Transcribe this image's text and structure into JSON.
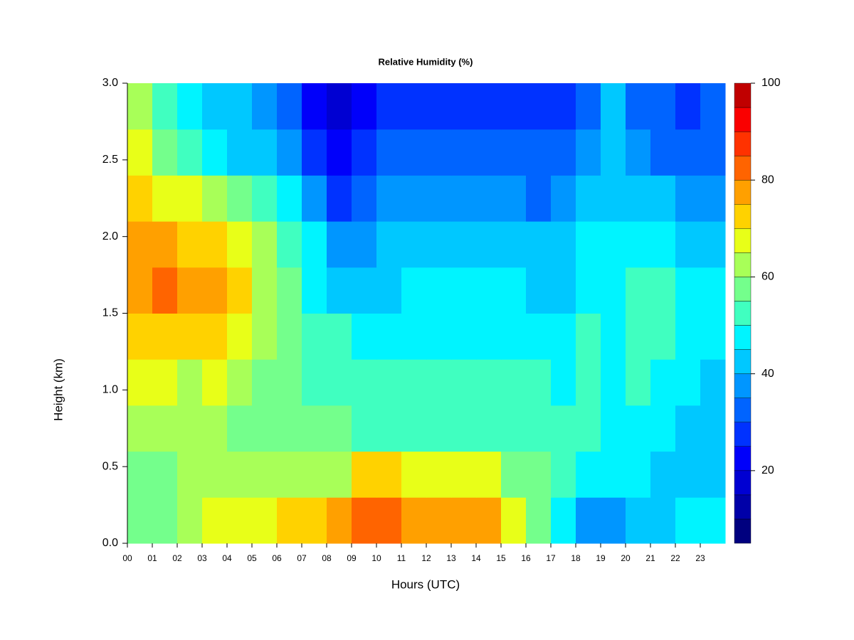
{
  "chart_data": {
    "type": "heatmap",
    "title": "Relative Humidity (%)",
    "x_label": "Hours (UTC)",
    "y_label": "Height (km)",
    "xlim": [
      0,
      24
    ],
    "ylim": [
      0,
      3
    ],
    "xticks": [
      {
        "value": 0,
        "label": "00"
      },
      {
        "value": 1,
        "label": "01"
      },
      {
        "value": 2,
        "label": "02"
      },
      {
        "value": 3,
        "label": "03"
      },
      {
        "value": 4,
        "label": "04"
      },
      {
        "value": 5,
        "label": "05"
      },
      {
        "value": 6,
        "label": "06"
      },
      {
        "value": 7,
        "label": "07"
      },
      {
        "value": 8,
        "label": "08"
      },
      {
        "value": 9,
        "label": "09"
      },
      10,
      11,
      12,
      13,
      14,
      15,
      16,
      17,
      18,
      19,
      20,
      21,
      22,
      23
    ],
    "yticks": [
      {
        "value": 0,
        "label": "0.0"
      },
      0.5,
      {
        "value": 1,
        "label": "1.0"
      },
      1.5,
      {
        "value": 2,
        "label": "2.0"
      },
      2.5,
      {
        "value": 3,
        "label": "3.0"
      }
    ],
    "x": [
      0.5,
      1.5,
      2.5,
      3.5,
      4.5,
      5.5,
      6.5,
      7.5,
      8.5,
      9.5,
      10.5,
      11.5,
      12.5,
      13.5,
      14.5,
      15.5,
      16.5,
      17.5,
      18.5,
      19.5,
      20.5,
      21.5,
      22.5,
      23.5
    ],
    "y": [
      0.15,
      0.45,
      0.75,
      1.05,
      1.35,
      1.65,
      1.95,
      2.25,
      2.55,
      2.85
    ],
    "z": [
      [
        55,
        58,
        62,
        65,
        65,
        68,
        70,
        72,
        75,
        80,
        82,
        78,
        75,
        78,
        76,
        68,
        58,
        45,
        38,
        38,
        42,
        44,
        45,
        45
      ],
      [
        55,
        55,
        60,
        62,
        62,
        62,
        60,
        60,
        62,
        70,
        72,
        68,
        65,
        68,
        65,
        58,
        55,
        50,
        48,
        45,
        45,
        44,
        42,
        42
      ],
      [
        60,
        62,
        60,
        60,
        58,
        55,
        55,
        55,
        55,
        52,
        52,
        52,
        52,
        52,
        52,
        50,
        50,
        50,
        50,
        48,
        48,
        46,
        42,
        42
      ],
      [
        65,
        65,
        63,
        65,
        60,
        58,
        55,
        53,
        52,
        52,
        50,
        50,
        50,
        52,
        52,
        50,
        50,
        48,
        50,
        48,
        50,
        48,
        45,
        44
      ],
      [
        70,
        72,
        70,
        70,
        65,
        60,
        55,
        52,
        50,
        48,
        48,
        48,
        48,
        48,
        48,
        48,
        48,
        46,
        50,
        48,
        52,
        50,
        46,
        45
      ],
      [
        78,
        80,
        76,
        78,
        72,
        62,
        55,
        48,
        40,
        42,
        44,
        46,
        46,
        46,
        46,
        46,
        44,
        44,
        48,
        46,
        52,
        50,
        46,
        45
      ],
      [
        78,
        78,
        74,
        74,
        68,
        60,
        52,
        45,
        35,
        38,
        40,
        42,
        42,
        42,
        42,
        42,
        40,
        42,
        45,
        45,
        48,
        46,
        42,
        42
      ],
      [
        70,
        68,
        65,
        62,
        58,
        52,
        46,
        36,
        28,
        32,
        36,
        38,
        38,
        38,
        38,
        36,
        34,
        38,
        42,
        42,
        44,
        40,
        36,
        36
      ],
      [
        68,
        58,
        52,
        48,
        44,
        40,
        36,
        28,
        22,
        28,
        32,
        34,
        32,
        32,
        32,
        30,
        30,
        34,
        38,
        40,
        38,
        34,
        30,
        32
      ],
      [
        62,
        52,
        46,
        44,
        42,
        38,
        34,
        24,
        18,
        24,
        28,
        28,
        26,
        26,
        26,
        26,
        26,
        28,
        32,
        40,
        34,
        30,
        28,
        30
      ]
    ],
    "levels": [
      5,
      10,
      15,
      20,
      25,
      30,
      35,
      40,
      45,
      50,
      55,
      60,
      65,
      70,
      75,
      80,
      85,
      90,
      95,
      100
    ],
    "colors": [
      "#00007f",
      "#0000a8",
      "#0000d2",
      "#0000fa",
      "#0032ff",
      "#0064ff",
      "#0096ff",
      "#00c8ff",
      "#00f4ff",
      "#40ffc0",
      "#74ff8c",
      "#a8ff58",
      "#e8ff18",
      "#ffd200",
      "#ffa000",
      "#ff6400",
      "#ff3200",
      "#fa0000",
      "#c00000",
      "#800000"
    ],
    "colorbar_ticks": [
      20,
      40,
      60,
      80,
      100
    ]
  }
}
